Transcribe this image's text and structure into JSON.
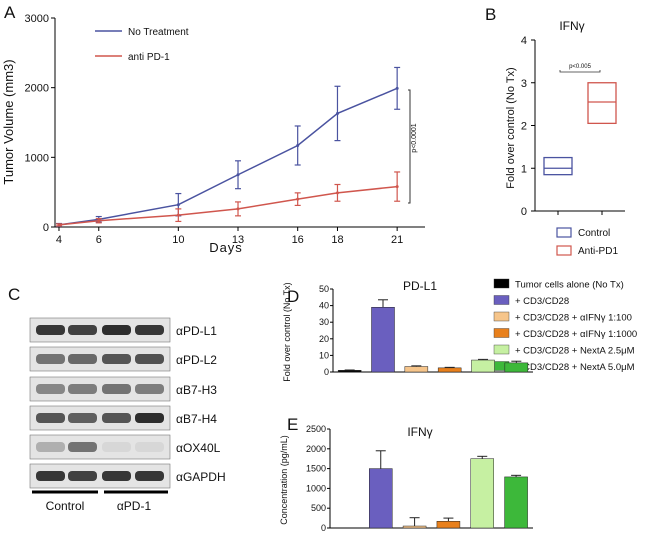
{
  "panel_labels": {
    "A": "A",
    "B": "B",
    "C": "C",
    "D": "D",
    "E": "E"
  },
  "colors": {
    "no_treatment": "#4a53a0",
    "anti_pd1": "#d0564d",
    "tumor_alone": "#000000",
    "cd3cd28": "#6a5fbf",
    "ifng_100": "#f6c58b",
    "ifng_1000": "#e8801c",
    "nexta_2_5": "#c6f0a2",
    "nexta_5_0": "#3db83a"
  },
  "chart_data": [
    {
      "id": "A",
      "type": "line",
      "xlabel": "Days",
      "ylabel": "Tumor Volume (mm3)",
      "x": [
        4,
        6,
        10,
        13,
        16,
        18,
        21
      ],
      "ylim": [
        0,
        3000
      ],
      "yticks": [
        "0",
        "1000",
        "2000",
        "3000"
      ],
      "series": [
        {
          "name": "No Treatment",
          "values": [
            30,
            110,
            320,
            750,
            1170,
            1630,
            1990
          ],
          "errors": [
            20,
            40,
            160,
            200,
            280,
            390,
            300
          ]
        },
        {
          "name": "anti PD-1",
          "values": [
            30,
            90,
            170,
            260,
            400,
            490,
            580
          ],
          "errors": [
            15,
            30,
            90,
            100,
            90,
            120,
            210
          ]
        }
      ],
      "annotation": "p<0.0001"
    },
    {
      "id": "B",
      "type": "box",
      "title": "IFNγ",
      "ylabel": "Fold over control (No Tx)",
      "ylim": [
        0,
        4
      ],
      "yticks": [
        "0",
        "1",
        "2",
        "3",
        "4"
      ],
      "boxes": [
        {
          "name": "Control",
          "low": 0.85,
          "mid": 1.0,
          "high": 1.25
        },
        {
          "name": "Anti-PD1",
          "low": 2.05,
          "mid": 2.55,
          "high": 3.0
        }
      ],
      "annotation": "p<0.005"
    },
    {
      "id": "D",
      "type": "bar",
      "title": "PD-L1",
      "ylabel": "Fold over control (No Tx)",
      "ylim": [
        0,
        50
      ],
      "yticks": [
        "0",
        "10",
        "20",
        "30",
        "40",
        "50"
      ],
      "categories": [
        "Tumor cells alone (No Tx)",
        "+ CD3/CD28",
        "+ CD3/CD28 + αIFNγ 1:100",
        "+ CD3/CD28 + αIFNγ 1:1000",
        "+ CD3/CD28 + NextA 2.5μM",
        "+ CD3/CD28 + NextA 5.0μM"
      ],
      "values": [
        1,
        39,
        3.3,
        2.5,
        7.2,
        5.5
      ],
      "errors": [
        0.2,
        4.5,
        0.4,
        0.3,
        0.4,
        1.0
      ]
    },
    {
      "id": "E",
      "type": "bar",
      "title": "IFNγ",
      "ylabel": "Concentration (pg/mL)",
      "ylim": [
        0,
        2500
      ],
      "yticks": [
        "0",
        "500",
        "1000",
        "1500",
        "2000",
        "2500"
      ],
      "categories": [
        "Tumor cells alone (No Tx)",
        "+ CD3/CD28",
        "+ CD3/CD28 + αIFNγ 1:100",
        "+ CD3/CD28 + αIFNγ 1:1000",
        "+ CD3/CD28 + NextA 2.5μM",
        "+ CD3/CD28 + NextA 5.0μM"
      ],
      "values": [
        0,
        1500,
        50,
        170,
        1750,
        1290
      ],
      "errors": [
        0,
        450,
        210,
        80,
        60,
        40
      ]
    }
  ],
  "legends": {
    "A": [
      "No Treatment",
      "anti PD-1"
    ],
    "B": [
      "Control",
      "Anti-PD1"
    ],
    "DE": [
      "Tumor cells alone (No Tx)",
      "+ CD3/CD28",
      "+ CD3/CD28 + αIFNγ 1:100",
      "+ CD3/CD28 + αIFNγ 1:1000",
      "+ CD3/CD28 + NextA 2.5μM",
      "+ CD3/CD28 + NextA 5.0μM"
    ]
  },
  "western": {
    "labels": [
      "αPD-L1",
      "αPD-L2",
      "αB7-H3",
      "αB7-H4",
      "αOX40L",
      "αGAPDH"
    ],
    "groups": [
      "Control",
      "αPD-1"
    ],
    "intensity": [
      [
        0.85,
        0.8,
        0.9,
        0.85
      ],
      [
        0.55,
        0.6,
        0.7,
        0.72
      ],
      [
        0.45,
        0.5,
        0.55,
        0.5
      ],
      [
        0.7,
        0.65,
        0.7,
        0.9
      ],
      [
        0.25,
        0.55,
        0.05,
        0.05
      ],
      [
        0.85,
        0.8,
        0.85,
        0.85
      ]
    ]
  }
}
